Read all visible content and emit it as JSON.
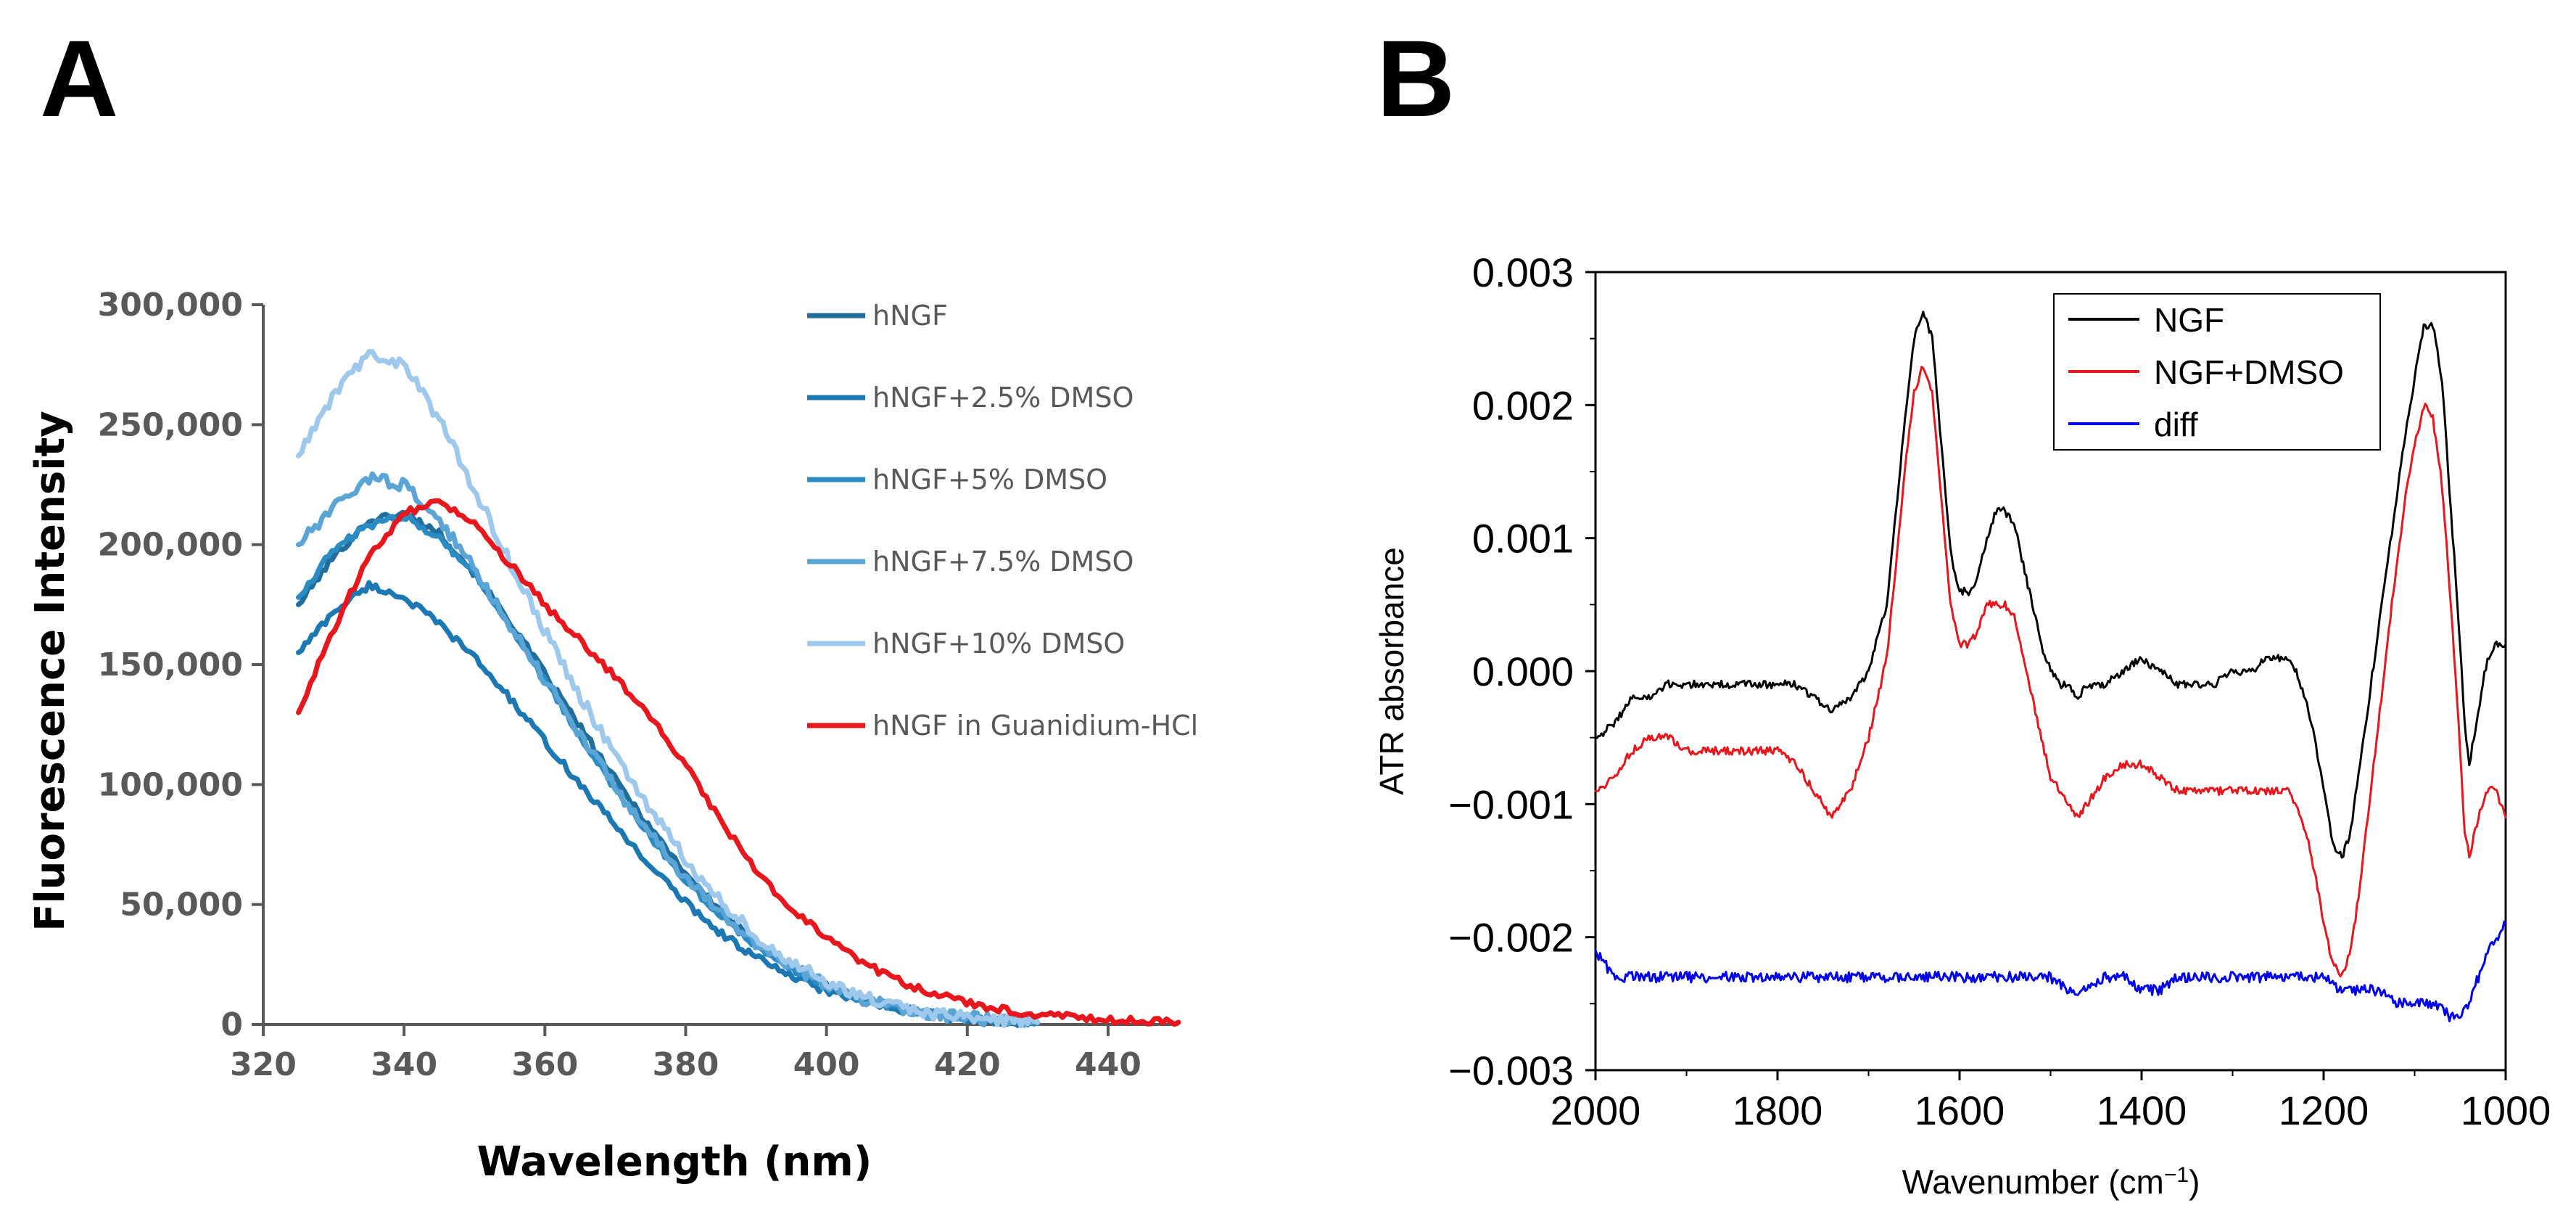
{
  "panels": {
    "a_letter": "A",
    "b_letter": "B"
  },
  "chart_data": [
    {
      "panel": "A",
      "type": "line",
      "title": "",
      "xlabel": "Wavelength (nm)",
      "ylabel": "Fluorescence Intensity",
      "xlim": [
        320,
        450
      ],
      "ylim": [
        0,
        300000
      ],
      "xticks": [
        320,
        340,
        360,
        380,
        400,
        420,
        440
      ],
      "yticks": [
        0,
        50000,
        100000,
        150000,
        200000,
        250000,
        300000
      ],
      "xtick_labels": [
        "320",
        "340",
        "360",
        "380",
        "400",
        "420",
        "440"
      ],
      "ytick_labels": [
        "0",
        "50,000",
        "100,000",
        "150,000",
        "200,000",
        "250,000",
        "300,000"
      ],
      "grid": false,
      "legend_position": "right",
      "series": [
        {
          "name": "hNGF",
          "color": "#1f6e9e",
          "noise": 1500,
          "x": [
            325,
            330,
            335,
            340,
            345,
            350,
            355,
            360,
            365,
            370,
            375,
            380,
            385,
            390,
            395,
            400,
            405,
            410,
            415,
            420,
            425,
            430
          ],
          "y": [
            175000,
            195000,
            210000,
            213000,
            205000,
            188000,
            168000,
            146000,
            124000,
            102000,
            82000,
            63000,
            47000,
            34000,
            24000,
            16500,
            11000,
            7000,
            4500,
            2800,
            1600,
            800
          ]
        },
        {
          "name": "hNGF+2.5% DMSO",
          "color": "#1b78b3",
          "noise": 1500,
          "x": [
            325,
            330,
            335,
            340,
            345,
            350,
            355,
            360,
            365,
            370,
            375,
            380,
            385,
            390,
            395,
            400,
            405,
            410,
            415,
            420,
            425,
            430
          ],
          "y": [
            155000,
            172000,
            183000,
            178000,
            167000,
            153000,
            136000,
            118000,
            100000,
            83000,
            66000,
            51000,
            38000,
            28000,
            20000,
            14000,
            9500,
            6000,
            3800,
            2300,
            1300,
            700
          ]
        },
        {
          "name": "hNGF+5% DMSO",
          "color": "#2b8cc4",
          "noise": 1500,
          "x": [
            325,
            330,
            335,
            340,
            345,
            350,
            355,
            360,
            365,
            370,
            375,
            380,
            385,
            390,
            395,
            400,
            405,
            410,
            415,
            420,
            425,
            430
          ],
          "y": [
            178000,
            198000,
            208000,
            212000,
            203000,
            188000,
            166000,
            143000,
            120000,
            98000,
            78000,
            60000,
            45000,
            33000,
            23500,
            16000,
            10800,
            7000,
            4500,
            2800,
            1600,
            800
          ]
        },
        {
          "name": "hNGF+7.5% DMSO",
          "color": "#5aa5d6",
          "noise": 2500,
          "x": [
            325,
            330,
            335,
            340,
            345,
            350,
            355,
            360,
            365,
            370,
            375,
            380,
            385,
            390,
            395,
            400,
            405,
            410,
            415,
            420,
            425,
            430
          ],
          "y": [
            200000,
            215000,
            228000,
            225000,
            210000,
            190000,
            167000,
            144000,
            121000,
            99000,
            79000,
            61000,
            46000,
            34000,
            24000,
            16500,
            11000,
            7000,
            4500,
            2800,
            1600,
            800
          ]
        },
        {
          "name": "hNGF+10% DMSO",
          "color": "#9ec9ec",
          "noise": 2500,
          "x": [
            325,
            330,
            335,
            340,
            345,
            350,
            355,
            360,
            365,
            370,
            375,
            380,
            385,
            390,
            395,
            400,
            405,
            410,
            415,
            420,
            425,
            430
          ],
          "y": [
            237000,
            262000,
            280000,
            275000,
            252000,
            223000,
            193000,
            164000,
            137000,
            112000,
            89000,
            69000,
            51000,
            37000,
            26000,
            17500,
            11500,
            7300,
            4700,
            2900,
            1700,
            900
          ]
        },
        {
          "name": "hNGF in Guanidium-HCl",
          "color": "#e8161d",
          "noise": 1500,
          "x": [
            325,
            330,
            335,
            340,
            345,
            350,
            355,
            360,
            365,
            370,
            375,
            380,
            385,
            390,
            395,
            400,
            405,
            410,
            415,
            420,
            425,
            430,
            435,
            440,
            445,
            450
          ],
          "y": [
            130000,
            165000,
            195000,
            213000,
            218000,
            208000,
            192000,
            175000,
            160000,
            145000,
            128000,
            108000,
            85000,
            64000,
            48000,
            36000,
            26000,
            18500,
            13000,
            9000,
            6200,
            4300,
            3000,
            2100,
            1400,
            900
          ]
        }
      ]
    },
    {
      "panel": "B",
      "type": "line",
      "title": "",
      "xlabel": "Wavenumber (cm",
      "xlabel_sup": "−1",
      "xlabel_close": ")",
      "ylabel": "ATR absorbance",
      "xlim": [
        2000,
        1000
      ],
      "ylim": [
        -0.003,
        0.003
      ],
      "xticks": [
        2000,
        1800,
        1600,
        1400,
        1200,
        1000
      ],
      "yticks": [
        -0.003,
        -0.002,
        -0.001,
        0.0,
        0.001,
        0.002,
        0.003
      ],
      "xtick_labels": [
        "2000",
        "1800",
        "1600",
        "1400",
        "1200",
        "1000"
      ],
      "ytick_labels": [
        "−0.003",
        "−0.002",
        "−0.001",
        "0.000",
        "0.001",
        "0.002",
        "0.003"
      ],
      "grid": false,
      "legend_position": "top-right",
      "series": [
        {
          "name": "NGF",
          "color": "#000000",
          "noise": 3e-05,
          "x": [
            2000,
            1980,
            1960,
            1940,
            1920,
            1900,
            1880,
            1860,
            1840,
            1820,
            1800,
            1780,
            1760,
            1740,
            1720,
            1700,
            1680,
            1670,
            1660,
            1650,
            1640,
            1630,
            1620,
            1610,
            1600,
            1590,
            1580,
            1570,
            1560,
            1550,
            1540,
            1530,
            1520,
            1510,
            1500,
            1490,
            1480,
            1470,
            1460,
            1440,
            1420,
            1400,
            1380,
            1360,
            1340,
            1320,
            1300,
            1280,
            1260,
            1240,
            1230,
            1220,
            1210,
            1200,
            1190,
            1180,
            1170,
            1160,
            1150,
            1140,
            1130,
            1120,
            1110,
            1100,
            1090,
            1080,
            1070,
            1060,
            1050,
            1045,
            1040,
            1030,
            1020,
            1010,
            1000
          ],
          "y": [
            -0.0005,
            -0.0004,
            -0.0002,
            -0.0002,
            -0.0001,
            -0.0001,
            -0.0001,
            -0.0001,
            -0.0001,
            -0.0001,
            -0.0001,
            -0.0001,
            -0.0002,
            -0.0003,
            -0.0002,
            0.0,
            0.0005,
            0.0012,
            0.0019,
            0.0025,
            0.0027,
            0.0025,
            0.0017,
            0.0009,
            0.0006,
            0.0006,
            0.0007,
            0.001,
            0.0012,
            0.0012,
            0.0011,
            0.0008,
            0.0005,
            0.0002,
            0.0,
            -0.0001,
            -0.0001,
            -0.0002,
            -0.0001,
            -0.0001,
            0.0,
            0.0001,
            0.0,
            -0.0001,
            -0.0001,
            -0.0001,
            0.0,
            0.0,
            0.0001,
            0.0001,
            0.0,
            -0.0002,
            -0.0005,
            -0.0009,
            -0.0013,
            -0.0014,
            -0.0012,
            -0.0007,
            -0.0002,
            0.0003,
            0.0008,
            0.0013,
            0.0018,
            0.0022,
            0.0026,
            0.0026,
            0.0022,
            0.0012,
            0.0002,
            -0.0004,
            -0.0007,
            -0.0003,
            0.0001,
            0.0002,
            0.0002
          ]
        },
        {
          "name": "NGF+DMSO",
          "color": "#e8161d",
          "noise": 3e-05,
          "x": [
            2000,
            1980,
            1960,
            1940,
            1920,
            1900,
            1880,
            1860,
            1840,
            1820,
            1800,
            1780,
            1760,
            1740,
            1720,
            1700,
            1680,
            1670,
            1660,
            1650,
            1640,
            1630,
            1620,
            1610,
            1600,
            1590,
            1580,
            1570,
            1560,
            1550,
            1540,
            1530,
            1520,
            1510,
            1500,
            1490,
            1480,
            1470,
            1460,
            1440,
            1420,
            1400,
            1380,
            1360,
            1340,
            1320,
            1300,
            1280,
            1260,
            1240,
            1230,
            1220,
            1210,
            1200,
            1190,
            1180,
            1170,
            1160,
            1150,
            1140,
            1130,
            1120,
            1110,
            1100,
            1090,
            1080,
            1070,
            1060,
            1050,
            1045,
            1040,
            1030,
            1020,
            1010,
            1000
          ],
          "y": [
            -0.0009,
            -0.0008,
            -0.0006,
            -0.0005,
            -0.0005,
            -0.0006,
            -0.0006,
            -0.0006,
            -0.0006,
            -0.0006,
            -0.0006,
            -0.0007,
            -0.0009,
            -0.0011,
            -0.0009,
            -0.0005,
            0.0001,
            0.0008,
            0.0015,
            0.0021,
            0.0023,
            0.0021,
            0.0013,
            0.0005,
            0.0002,
            0.0002,
            0.0003,
            0.0005,
            0.0005,
            0.0005,
            0.0004,
            0.0001,
            -0.0002,
            -0.0005,
            -0.0008,
            -0.0009,
            -0.001,
            -0.0011,
            -0.001,
            -0.0008,
            -0.0007,
            -0.0007,
            -0.0008,
            -0.0009,
            -0.0009,
            -0.0009,
            -0.0009,
            -0.0009,
            -0.0009,
            -0.0009,
            -0.001,
            -0.0012,
            -0.0015,
            -0.0019,
            -0.0022,
            -0.0023,
            -0.0021,
            -0.0016,
            -0.001,
            -0.0004,
            0.0002,
            0.0008,
            0.0013,
            0.0017,
            0.002,
            0.0019,
            0.0014,
            0.0005,
            -0.0006,
            -0.0012,
            -0.0014,
            -0.0011,
            -0.0009,
            -0.0009,
            -0.0011
          ]
        },
        {
          "name": "diff",
          "color": "#0000ee",
          "noise": 4e-05,
          "x": [
            2000,
            1980,
            1960,
            1940,
            1920,
            1900,
            1880,
            1860,
            1840,
            1820,
            1800,
            1780,
            1760,
            1740,
            1720,
            1700,
            1680,
            1660,
            1640,
            1620,
            1600,
            1580,
            1560,
            1540,
            1520,
            1500,
            1480,
            1460,
            1440,
            1420,
            1400,
            1380,
            1360,
            1340,
            1320,
            1300,
            1280,
            1260,
            1240,
            1220,
            1200,
            1180,
            1160,
            1140,
            1120,
            1100,
            1080,
            1060,
            1050,
            1040,
            1030,
            1020,
            1010,
            1000
          ],
          "y": [
            -0.0021,
            -0.0023,
            -0.0023,
            -0.0023,
            -0.0023,
            -0.0023,
            -0.0023,
            -0.0023,
            -0.0023,
            -0.0023,
            -0.0023,
            -0.0023,
            -0.0023,
            -0.0023,
            -0.0023,
            -0.0023,
            -0.0023,
            -0.0023,
            -0.0023,
            -0.0023,
            -0.0023,
            -0.0023,
            -0.0023,
            -0.0023,
            -0.0023,
            -0.0023,
            -0.0024,
            -0.0024,
            -0.0023,
            -0.0023,
            -0.0024,
            -0.0024,
            -0.0023,
            -0.0023,
            -0.0023,
            -0.0023,
            -0.0023,
            -0.0023,
            -0.0023,
            -0.0023,
            -0.0023,
            -0.0024,
            -0.0024,
            -0.0024,
            -0.0025,
            -0.0025,
            -0.0025,
            -0.0026,
            -0.0026,
            -0.0025,
            -0.0023,
            -0.0021,
            -0.002,
            -0.0019
          ]
        }
      ]
    }
  ]
}
